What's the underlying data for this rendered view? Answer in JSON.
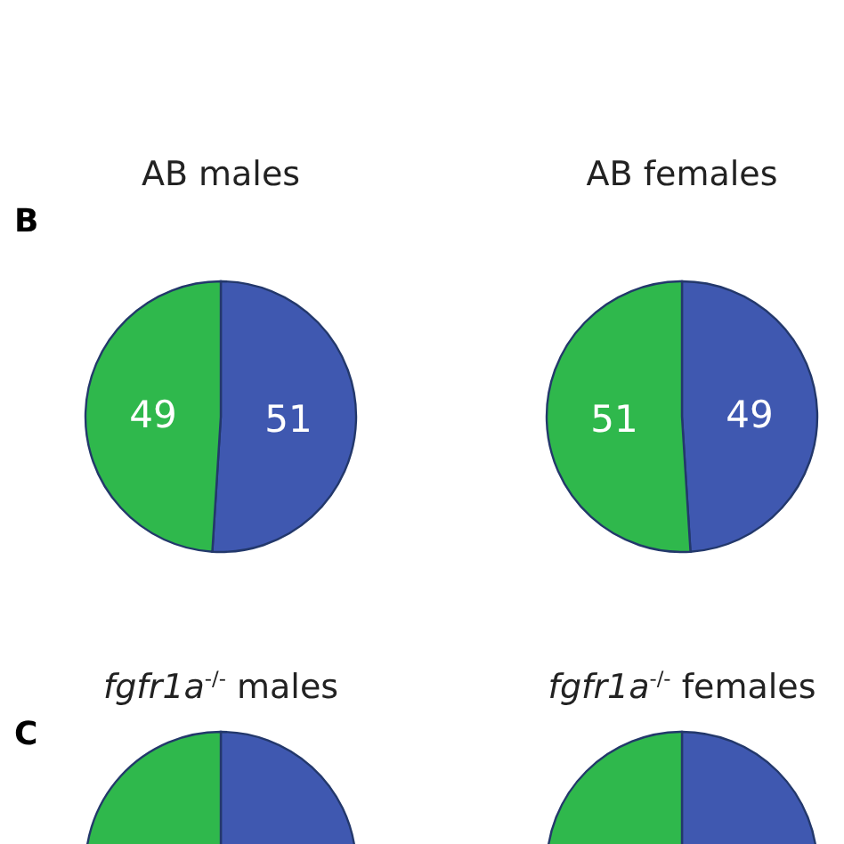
{
  "chart_data": [
    {
      "type": "pie",
      "title": "AB males",
      "annotations": [
        "B"
      ],
      "categories": [
        null,
        null
      ],
      "values": [
        51,
        49
      ],
      "colors": [
        "#3f58b0",
        "#2fb84c"
      ],
      "data_labels": true
    },
    {
      "type": "pie",
      "title": "AB females",
      "categories": [
        null,
        null
      ],
      "values": [
        49,
        51
      ],
      "colors": [
        "#3f58b0",
        "#2fb84c"
      ],
      "data_labels": true
    },
    {
      "type": "pie",
      "title": "fgfr1a$^{-/-}$ males",
      "annotations": [
        "C"
      ],
      "categories": [
        null,
        null
      ],
      "values": [
        47,
        53
      ],
      "colors": [
        "#3f58b0",
        "#2fb84c"
      ]
    },
    {
      "type": "pie",
      "title": "fgfr1a$^{-/-}$ females",
      "categories": [
        null,
        null
      ],
      "values": [
        50,
        50
      ],
      "colors": [
        "#3f58b0",
        "#2fb84c"
      ]
    }
  ]
}
